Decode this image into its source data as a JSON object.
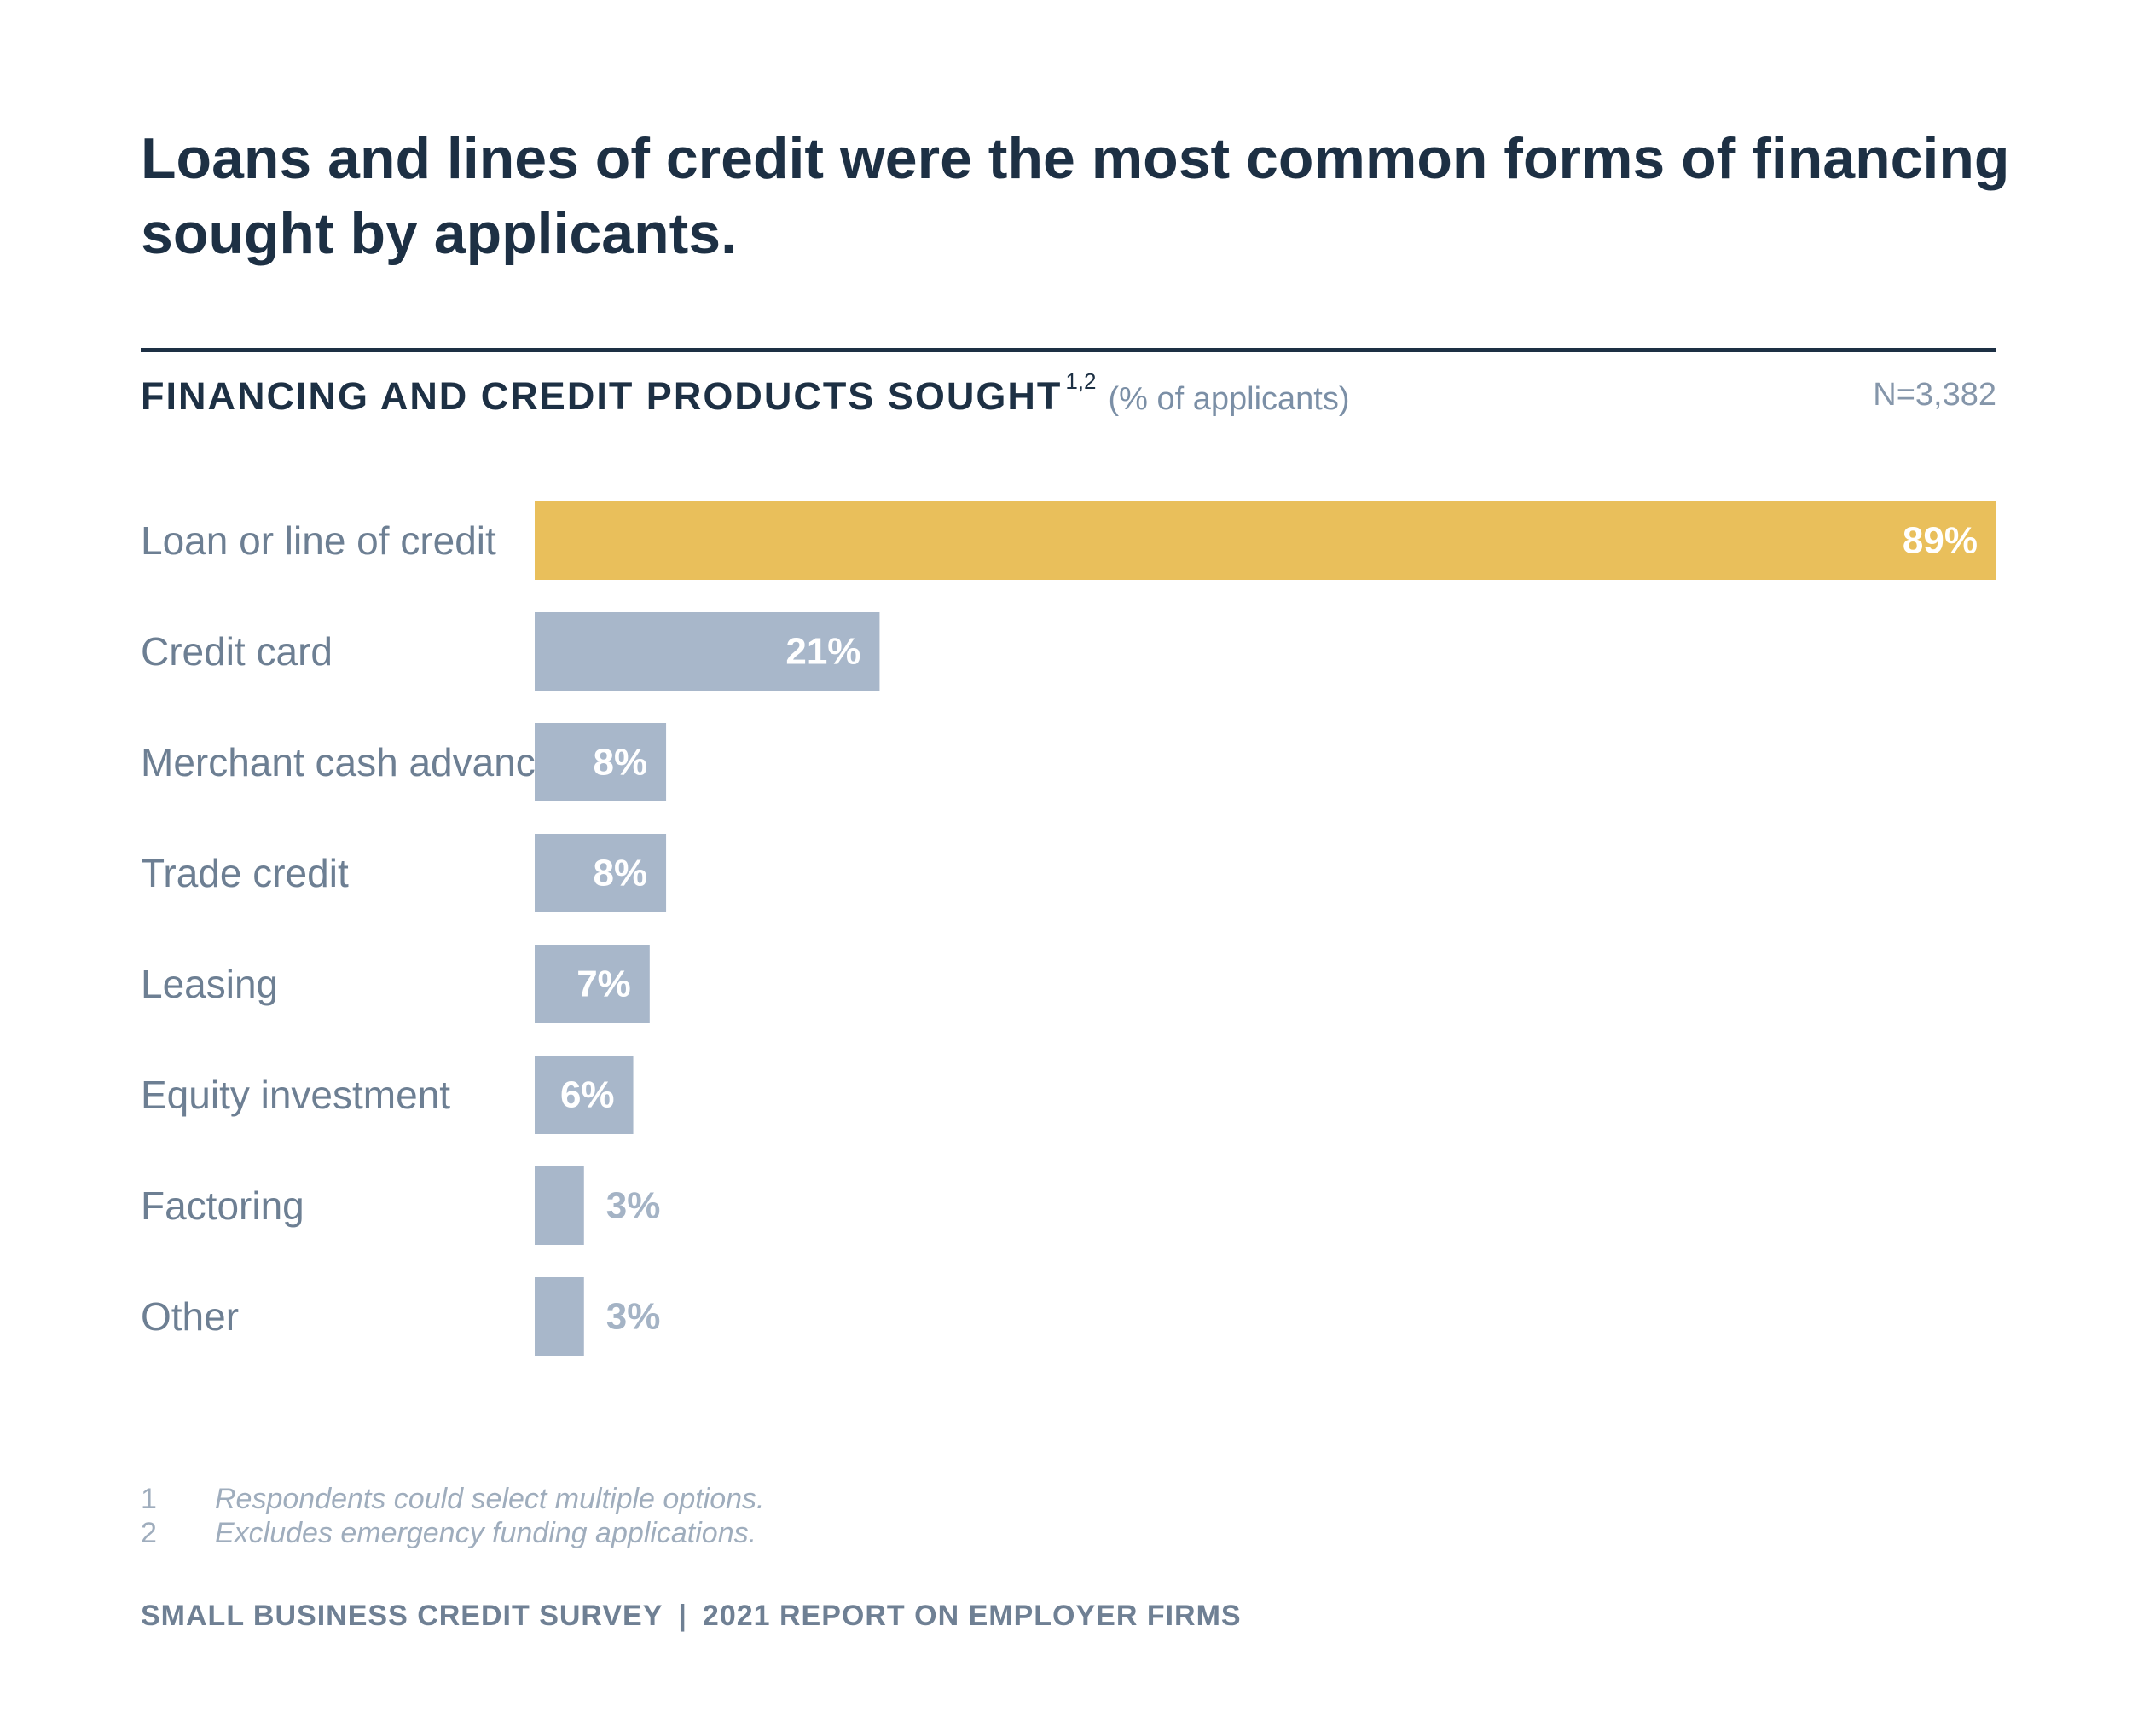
{
  "headline": "Loans and lines of credit were the most common forms of financing sought by applicants.",
  "chart_header": {
    "title": "FINANCING AND CREDIT PRODUCTS SOUGHT",
    "superscript": "1,2",
    "subtitle": "(% of applicants)",
    "sample_size": "N=3,382"
  },
  "colors": {
    "highlight": "#e9bf5b",
    "default_bar": "#a8b7ca",
    "inside_label": "#ffffff",
    "outside_label": "#a4b3c5"
  },
  "chart_data": {
    "type": "bar",
    "orientation": "horizontal",
    "title": "FINANCING AND CREDIT PRODUCTS SOUGHT",
    "xlabel": "% of applicants",
    "ylabel": "",
    "xlim": [
      0,
      89
    ],
    "categories": [
      "Loan or line of credit",
      "Credit card",
      "Merchant cash advance",
      "Trade credit",
      "Leasing",
      "Equity investment",
      "Factoring",
      "Other"
    ],
    "values": [
      89,
      21,
      8,
      8,
      7,
      6,
      3,
      3
    ],
    "value_labels": [
      "89%",
      "21%",
      "8%",
      "8%",
      "7%",
      "6%",
      "3%",
      "3%"
    ],
    "highlighted_index": 0,
    "grid": false,
    "legend": "none"
  },
  "footnotes": [
    {
      "num": "1",
      "text": "Respondents could select multiple options."
    },
    {
      "num": "2",
      "text": "Excludes emergency funding applications."
    }
  ],
  "footer": {
    "left": "SMALL BUSINESS CREDIT SURVEY",
    "separator": "|",
    "right": "2021 REPORT ON EMPLOYER FIRMS"
  }
}
